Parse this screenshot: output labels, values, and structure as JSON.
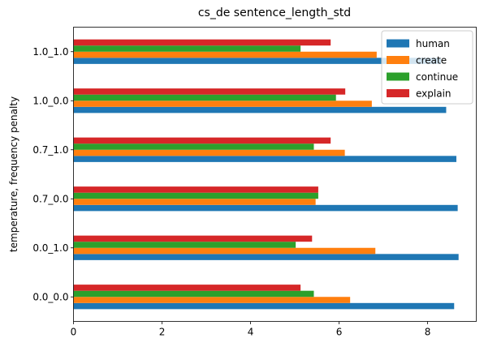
{
  "chart_data": {
    "type": "bar",
    "orientation": "horizontal",
    "title": "cs_de sentence_length_std",
    "xlabel": "",
    "ylabel": "temperature, frequency penalty",
    "xlim": [
      0,
      9.1
    ],
    "xticks": [
      0,
      2,
      4,
      6,
      8
    ],
    "grid": false,
    "legend_position": "top-right",
    "categories": [
      "0.0_0.0",
      "0.0_1.0",
      "0.7_0.0",
      "0.7_1.0",
      "1.0_0.0",
      "1.0_1.0"
    ],
    "series": [
      {
        "name": "human",
        "color": "#1f77b4",
        "values": [
          8.6,
          8.7,
          8.68,
          8.65,
          8.42,
          8.3
        ]
      },
      {
        "name": "create",
        "color": "#ff7f0e",
        "values": [
          6.25,
          6.82,
          5.47,
          6.13,
          6.74,
          6.85
        ]
      },
      {
        "name": "continue",
        "color": "#2ca02c",
        "values": [
          5.43,
          5.02,
          5.53,
          5.43,
          5.93,
          5.13
        ]
      },
      {
        "name": "explain",
        "color": "#d62728",
        "values": [
          5.13,
          5.39,
          5.53,
          5.81,
          6.14,
          5.81
        ]
      }
    ]
  }
}
